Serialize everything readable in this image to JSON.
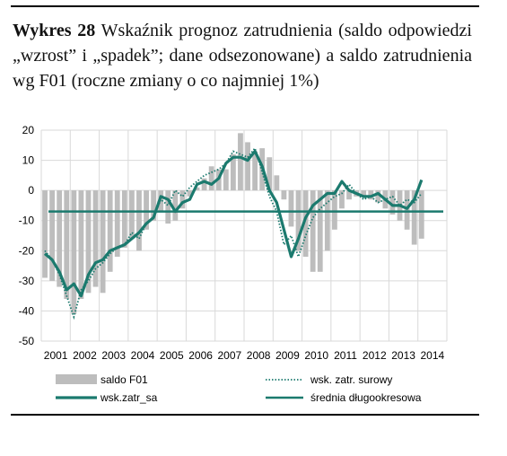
{
  "title": {
    "label": "Wykres 28",
    "text": "Wskaźnik prognoz zatrudnienia (saldo odpowiedzi „wzrost” i „spadek”; dane odsezonowane) a saldo zatrudnienia wg F01 (roczne zmiany o co najmniej 1%)"
  },
  "colors": {
    "bars": "#bdbdbd",
    "main_line": "#1b7a6e",
    "raw_line": "#1b7a6e",
    "average_line": "#1b7a6e",
    "grid": "#d9d9d9"
  },
  "chart_data": {
    "type": "bar",
    "title": "",
    "xlabel": "",
    "ylabel": "",
    "ylim": [
      -50,
      20
    ],
    "yticks": [
      20,
      10,
      0,
      -10,
      -20,
      -30,
      -40,
      -50
    ],
    "xticks": [
      "2001",
      "2002",
      "2003",
      "2004",
      "2005",
      "2006",
      "2007",
      "2008",
      "2009",
      "2010",
      "2011",
      "2012",
      "2013",
      "2014"
    ],
    "grid": true,
    "legend_position": "bottom",
    "x": [
      "2001q1",
      "2001q2",
      "2001q3",
      "2001q4",
      "2002q1",
      "2002q2",
      "2002q3",
      "2002q4",
      "2003q1",
      "2003q2",
      "2003q3",
      "2003q4",
      "2004q1",
      "2004q2",
      "2004q3",
      "2004q4",
      "2005q1",
      "2005q2",
      "2005q3",
      "2005q4",
      "2006q1",
      "2006q2",
      "2006q3",
      "2006q4",
      "2007q1",
      "2007q2",
      "2007q3",
      "2007q4",
      "2008q1",
      "2008q2",
      "2008q3",
      "2008q4",
      "2009q1",
      "2009q2",
      "2009q3",
      "2009q4",
      "2010q1",
      "2010q2",
      "2010q3",
      "2010q4",
      "2011q1",
      "2011q2",
      "2011q3",
      "2011q4",
      "2012q1",
      "2012q2",
      "2012q3",
      "2012q4",
      "2013q1",
      "2013q2",
      "2013q3",
      "2013q4",
      "2014q1"
    ],
    "series": [
      {
        "name": "saldo F01",
        "kind": "bar",
        "values": [
          -29,
          -30,
          -32,
          -36,
          -41,
          -36,
          -34,
          -32,
          -34,
          -27,
          -22,
          -19,
          -16,
          -20,
          -13,
          -10,
          -7,
          -11,
          -10,
          -6,
          -2,
          1,
          4,
          8,
          7,
          7,
          12,
          19,
          16,
          13,
          14,
          11,
          5,
          -3,
          -12,
          -20,
          -22,
          -27,
          -27,
          -20,
          -13,
          -6,
          -3,
          -2,
          -2,
          -3,
          -4,
          -6,
          -8,
          -10,
          -13,
          -18,
          -16
        ]
      },
      {
        "name": "wsk. zatr. surowy",
        "kind": "dotted-line",
        "values": [
          -20,
          -23,
          -28,
          -35,
          -42,
          -33,
          -30,
          -26,
          -24,
          -21,
          -19,
          -18,
          -14,
          -16,
          -11,
          -9,
          -3,
          -5,
          0,
          -2,
          1,
          3,
          5,
          6,
          7,
          9,
          13,
          12,
          11,
          14,
          6,
          -2,
          -7,
          -18,
          -15,
          -22,
          -15,
          -9,
          -6,
          -4,
          -2,
          -1,
          2,
          -1,
          -3,
          -2,
          -4,
          -3,
          -2,
          -5,
          -3,
          -4,
          -1
        ]
      },
      {
        "name": "wsk.zatr_sa",
        "kind": "line",
        "values": [
          -21,
          -23,
          -27,
          -33,
          -31,
          -35,
          -28,
          -24,
          -23,
          -20,
          -19,
          -18,
          -16,
          -14,
          -11,
          -9,
          -2,
          -3,
          -7,
          -4,
          -3,
          2,
          3,
          2,
          4,
          9,
          11,
          11,
          10,
          13,
          8,
          0,
          -4,
          -13,
          -22,
          -16,
          -9,
          -5,
          -3,
          -1,
          -1,
          3,
          0,
          -1,
          -2,
          -2,
          -1,
          -3,
          -5,
          -5,
          -6,
          -3,
          3.5
        ]
      },
      {
        "name": "średnia długookresowa",
        "kind": "hline",
        "value": -7
      }
    ]
  }
}
